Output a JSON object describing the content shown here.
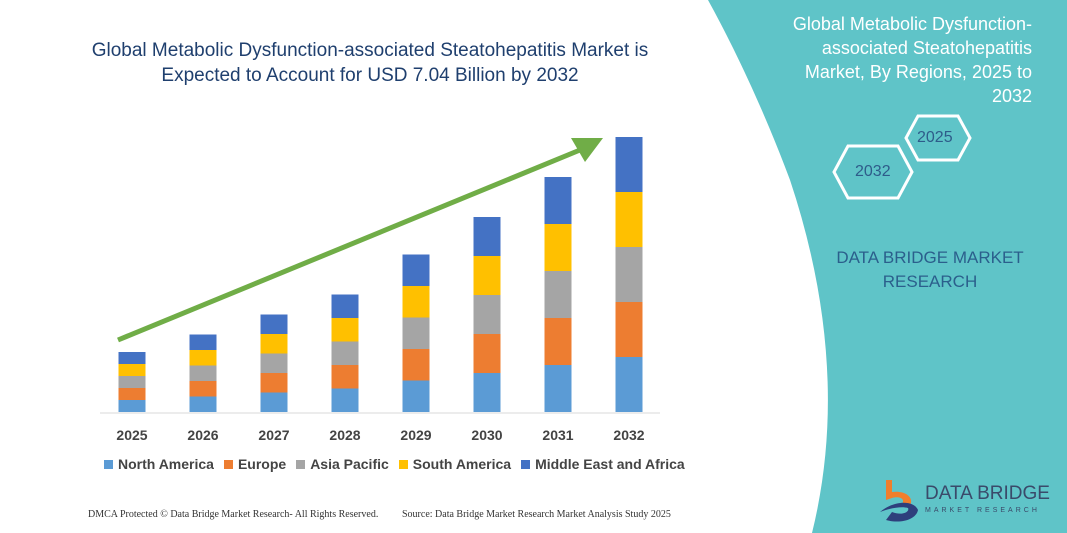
{
  "title": "Global Metabolic Dysfunction-associated Steatohepatitis Market is Expected to Account for USD 7.04 Billion by 2032",
  "side_panel": {
    "title": "Global Metabolic Dysfunction-associated Steatohepatitis Market, By Regions, 2025 to 2032",
    "hex_start": "2025",
    "hex_end": "2032",
    "brand": "DATA BRIDGE MARKET RESEARCH",
    "logo_text": "DATA BRIDGE",
    "logo_sub": "MARKET RESEARCH",
    "color": "#5fc4c8"
  },
  "footer": {
    "left": "DMCA Protected © Data Bridge Market Research- All Rights Reserved.",
    "right": "Source: Data Bridge Market Research Market Analysis Study 2025"
  },
  "chart_data": {
    "type": "bar",
    "stacked": true,
    "grid": false,
    "legend_placement": "bottom",
    "trend_arrow_color": "#70ad47",
    "categories": [
      "2025",
      "2026",
      "2027",
      "2028",
      "2029",
      "2030",
      "2031",
      "2032"
    ],
    "series": [
      {
        "name": "North America",
        "color": "#5b9bd5",
        "values": [
          12,
          15.5,
          19.5,
          23.5,
          31.5,
          39,
          47,
          55
        ]
      },
      {
        "name": "Europe",
        "color": "#ed7d31",
        "values": [
          12,
          15.5,
          19.5,
          23.5,
          31.5,
          39,
          47,
          55
        ]
      },
      {
        "name": "Asia Pacific",
        "color": "#a5a5a5",
        "values": [
          12,
          15.5,
          19.5,
          23.5,
          31.5,
          39,
          47,
          55
        ]
      },
      {
        "name": "South America",
        "color": "#ffc000",
        "values": [
          12,
          15.5,
          19.5,
          23.5,
          31.5,
          39,
          47,
          55
        ]
      },
      {
        "name": "Middle East and Africa",
        "color": "#4472c4",
        "values": [
          12,
          15.5,
          19.5,
          23.5,
          31.5,
          39,
          47,
          55
        ]
      }
    ]
  }
}
